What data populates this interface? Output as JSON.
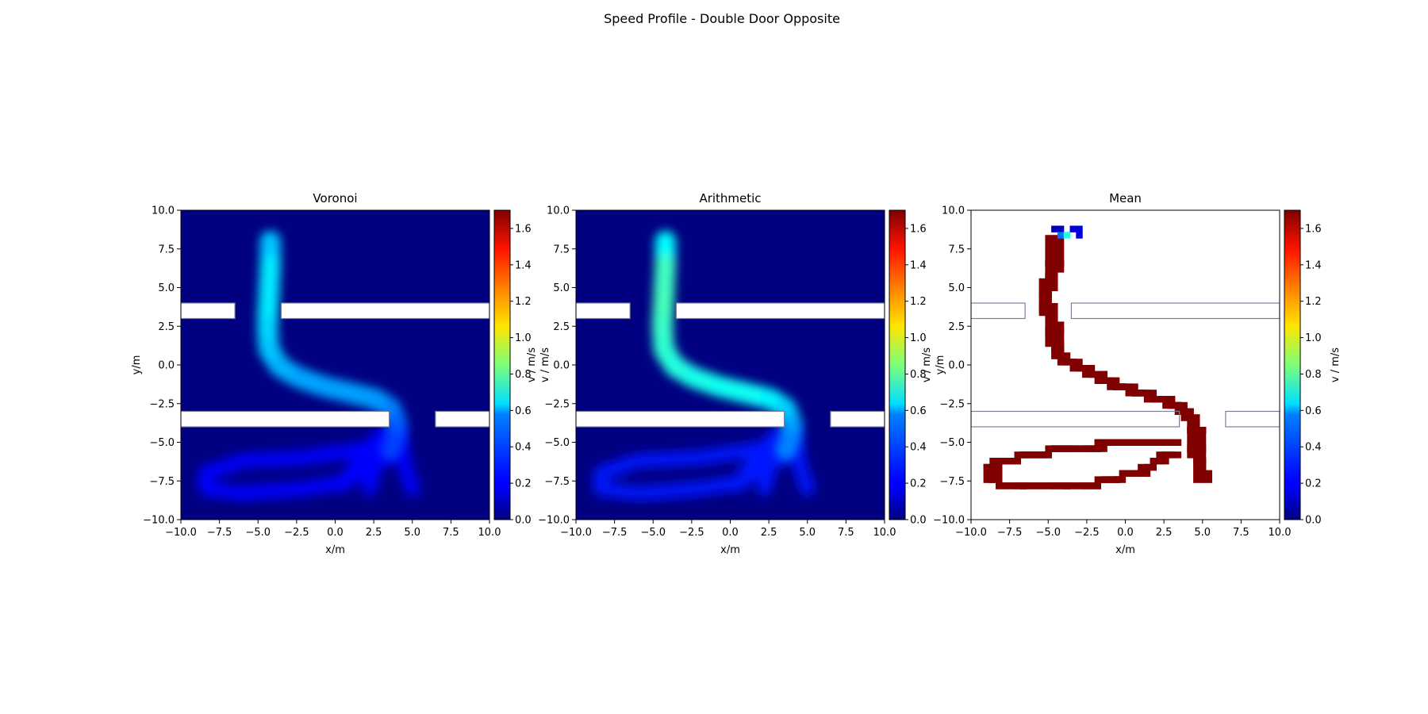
{
  "figure": {
    "title": "Speed Profile - Double Door Opposite"
  },
  "chart_data": [
    {
      "type": "heatmap",
      "title": "Voronoi",
      "xlabel": "x/m",
      "ylabel": "y/m",
      "xlim": [
        -10,
        10
      ],
      "ylim": [
        -10,
        10
      ],
      "xticks": [
        "−10.0",
        "−7.5",
        "−5.0",
        "−2.5",
        "0.0",
        "2.5",
        "5.0",
        "7.5",
        "10.0"
      ],
      "yticks": [
        "10.0",
        "7.5",
        "5.0",
        "2.5",
        "0.0",
        "−2.5",
        "−5.0",
        "−7.5",
        "−10.0"
      ],
      "colorbar": {
        "label": "v / m/s",
        "range": [
          0,
          1.7
        ],
        "ticks": [
          "0.0",
          "0.2",
          "0.4",
          "0.6",
          "0.8",
          "1.0",
          "1.2",
          "1.4",
          "1.6"
        ],
        "colormap": "jet"
      },
      "walls": [
        [
          -10,
          -6.5,
          3,
          4
        ],
        [
          -3.5,
          10,
          3,
          4
        ],
        [
          -10,
          3.5,
          -4,
          -3
        ],
        [
          6.5,
          10,
          -4,
          -3
        ]
      ],
      "trajectory": {
        "x": [
          -4.2,
          -4.2,
          -4.3,
          -4.4,
          -4.3,
          -3.6,
          -2.4,
          -0.7,
          1.0,
          2.6,
          3.6,
          4.0,
          3.9,
          3.6
        ],
        "y": [
          8.0,
          6.5,
          4.5,
          2.5,
          1.0,
          -0.1,
          -0.8,
          -1.4,
          -1.8,
          -2.2,
          -2.8,
          -3.8,
          -4.8,
          -5.5
        ],
        "speed": [
          0.5,
          0.58,
          0.62,
          0.58,
          0.56,
          0.52,
          0.5,
          0.48,
          0.48,
          0.48,
          0.46,
          0.4,
          0.34,
          0.3
        ]
      },
      "lower_trails": {
        "speed": 0.22
      }
    },
    {
      "type": "heatmap",
      "title": "Arithmetic",
      "xlabel": "x/m",
      "ylabel": "v / m/s",
      "xlim": [
        -10,
        10
      ],
      "ylim": [
        -10,
        10
      ],
      "xticks": [
        "−10.0",
        "−7.5",
        "−5.0",
        "−2.5",
        "0.0",
        "2.5",
        "5.0",
        "7.5",
        "10.0"
      ],
      "yticks": [
        "10.0",
        "7.5",
        "5.0",
        "2.5",
        "0.0",
        "−2.5",
        "−5.0",
        "−7.5",
        "−10.0"
      ],
      "colorbar": {
        "label": "y/m",
        "range": [
          0,
          1.7
        ],
        "ticks": [
          "0.0",
          "0.2",
          "0.4",
          "0.6",
          "0.8",
          "1.0",
          "1.2",
          "1.4",
          "1.6"
        ],
        "colormap": "jet"
      },
      "walls": [
        [
          -10,
          -6.5,
          3,
          4
        ],
        [
          -3.5,
          10,
          3,
          4
        ],
        [
          -10,
          3.5,
          -4,
          -3
        ],
        [
          6.5,
          10,
          -4,
          -3
        ]
      ],
      "trajectory": {
        "x": [
          -4.2,
          -4.2,
          -4.3,
          -4.4,
          -4.3,
          -3.6,
          -2.4,
          -0.7,
          1.0,
          2.6,
          3.6,
          4.0,
          3.9,
          3.6
        ],
        "y": [
          8.0,
          6.5,
          4.5,
          2.5,
          1.0,
          -0.1,
          -0.8,
          -1.4,
          -1.8,
          -2.2,
          -2.8,
          -3.8,
          -4.8,
          -5.5
        ],
        "speed": [
          0.55,
          0.72,
          0.76,
          0.74,
          0.72,
          0.7,
          0.68,
          0.66,
          0.66,
          0.64,
          0.6,
          0.52,
          0.46,
          0.4
        ]
      },
      "lower_trails": {
        "speed": 0.25
      }
    },
    {
      "type": "heatmap",
      "title": "Mean",
      "xlabel": "x/m",
      "ylabel": "v / m/s",
      "xlim": [
        -10,
        10
      ],
      "ylim": [
        -10,
        10
      ],
      "xticks": [
        "−10.0",
        "−7.5",
        "−5.0",
        "−2.5",
        "0.0",
        "2.5",
        "5.0",
        "7.5",
        "10.0"
      ],
      "yticks": [
        "10.0",
        "7.5",
        "5.0",
        "2.5",
        "0.0",
        "−2.5",
        "−5.0",
        "−7.5",
        "−10.0"
      ],
      "colorbar": {
        "label": "v / m/s",
        "range": [
          0,
          1.7
        ],
        "ticks": [
          "0.0",
          "0.2",
          "0.4",
          "0.6",
          "0.8",
          "1.0",
          "1.2",
          "1.4",
          "1.6"
        ],
        "colormap": "jet"
      },
      "walls": [
        [
          -10,
          -6.5,
          3,
          4
        ],
        [
          -3.5,
          10,
          3,
          4
        ],
        [
          -10,
          3.5,
          -4,
          -3
        ],
        [
          6.5,
          10,
          -4,
          -3
        ]
      ],
      "trajectory_cell_value": 1.7,
      "top_cells": [
        {
          "x": -4.8,
          "y": 8.6,
          "v": 0.1
        },
        {
          "x": -4.4,
          "y": 8.6,
          "v": 0.1
        },
        {
          "x": -4.4,
          "y": 8.2,
          "v": 0.4
        },
        {
          "x": -4.0,
          "y": 8.2,
          "v": 0.7
        },
        {
          "x": -3.6,
          "y": 8.6,
          "v": 0.15
        },
        {
          "x": -3.2,
          "y": 8.6,
          "v": 0.15
        },
        {
          "x": -3.2,
          "y": 8.2,
          "v": 0.15
        }
      ]
    }
  ],
  "colors": {
    "wall_fill": "#ffffff",
    "wall_stroke": "#7a7f99",
    "background_cmap_low": "#00008f"
  }
}
